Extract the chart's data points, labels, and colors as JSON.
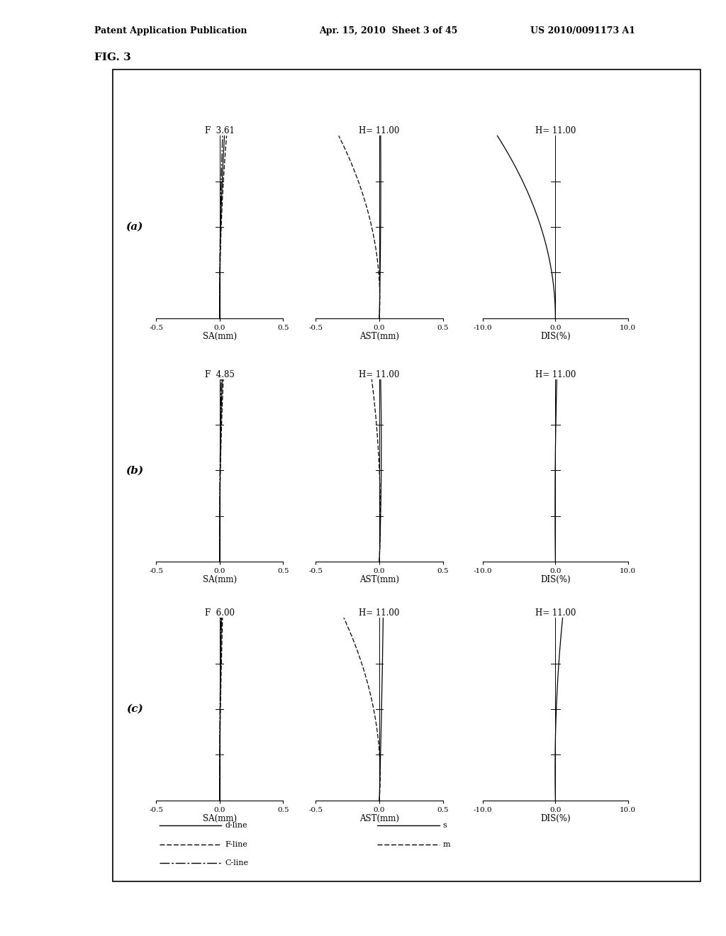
{
  "page_header_left": "Patent Application Publication",
  "page_header_mid": "Apr. 15, 2010  Sheet 3 of 45",
  "page_header_right": "US 2010/0091173 A1",
  "fig_label": "FIG. 3",
  "row_labels": [
    "(a)",
    "(b)",
    "(c)"
  ],
  "sa_titles": [
    "F  3.61",
    "F  4.85",
    "F  6.00"
  ],
  "ast_titles": [
    "H= 11.00",
    "H= 11.00",
    "H= 11.00"
  ],
  "dis_titles": [
    "H= 11.00",
    "H= 11.00",
    "H= 11.00"
  ],
  "sa_xlabel": "SA(mm)",
  "ast_xlabel": "AST(mm)",
  "dis_xlabel": "DIS(%)",
  "sa_xlim": [
    -0.5,
    0.5
  ],
  "ast_xlim": [
    -0.5,
    0.5
  ],
  "dis_xlim": [
    -10.0,
    10.0
  ],
  "sa_xticks": [
    -0.5,
    0.0,
    0.5
  ],
  "ast_xticks": [
    -0.5,
    0.0,
    0.5
  ],
  "dis_xticks": [
    -10.0,
    0.0,
    10.0
  ],
  "sa_xticklabels": [
    "-0.5",
    "0.0",
    "0.5"
  ],
  "ast_xticklabels": [
    "-0.5",
    "0.0",
    "0.5"
  ],
  "dis_xticklabels": [
    "-10.0",
    "0.0",
    "10.0"
  ],
  "background_color": "#ffffff",
  "border_color": "#000000",
  "legend_entries_left": [
    "d-line",
    "F-line",
    "C-line"
  ],
  "legend_entries_right": [
    "s",
    "m"
  ]
}
